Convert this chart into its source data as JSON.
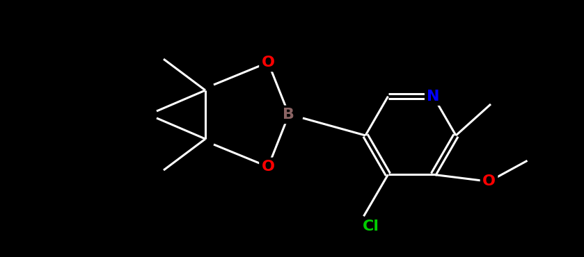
{
  "background_color": "#000000",
  "bond_color": "#FFFFFF",
  "atom_colors": {
    "N": "#0000FF",
    "O": "#FF0000",
    "B": "#8B6464",
    "Cl": "#00CC00"
  },
  "bond_lw": 2.2,
  "figsize": [
    8.39,
    3.7
  ],
  "dpi": 100,
  "xlim": [
    0,
    839
  ],
  "ylim": [
    0,
    370
  ]
}
